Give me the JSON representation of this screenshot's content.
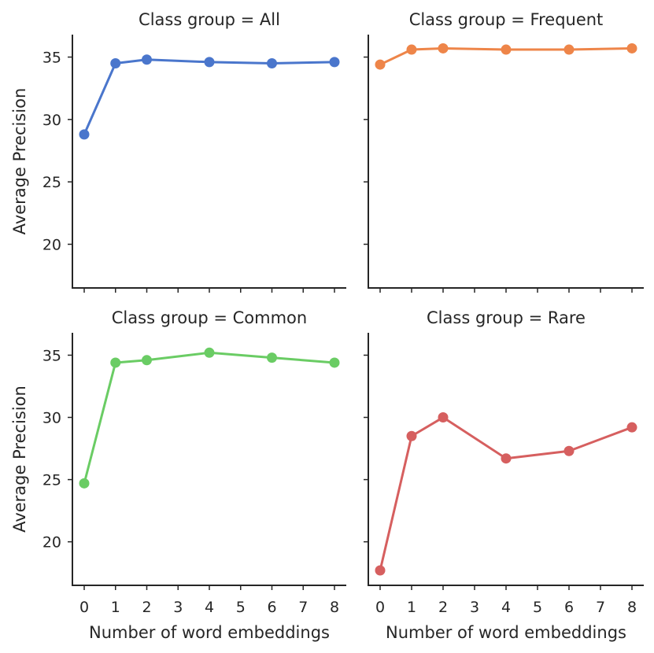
{
  "chart_data": {
    "type": "line",
    "facet_layout": "2x2",
    "shared_y": true,
    "ylim": [
      16.5,
      36.8
    ],
    "yticks": [
      20,
      25,
      30,
      35
    ],
    "ylabel": "Average Precision",
    "xlabel": "Number of word embeddings",
    "x_categories": [
      "0",
      "1",
      "2",
      "3",
      "4",
      "5",
      "6",
      "7",
      "8"
    ],
    "grid": false,
    "panels": [
      {
        "title": "Class group = All",
        "color": "#4a76cc",
        "x": [
          0,
          1,
          2,
          4,
          6,
          8
        ],
        "y": [
          28.8,
          34.5,
          34.8,
          34.6,
          34.5,
          34.6
        ]
      },
      {
        "title": "Class group = Frequent",
        "color": "#ee8549",
        "x": [
          0,
          1,
          2,
          4,
          6,
          8
        ],
        "y": [
          34.4,
          35.6,
          35.7,
          35.6,
          35.6,
          35.7
        ]
      },
      {
        "title": "Class group = Common",
        "color": "#6acc64",
        "x": [
          0,
          1,
          2,
          4,
          6,
          8
        ],
        "y": [
          24.7,
          34.4,
          34.6,
          35.2,
          34.8,
          34.4
        ]
      },
      {
        "title": "Class group = Rare",
        "color": "#d65f5f",
        "x": [
          0,
          1,
          2,
          4,
          6,
          8
        ],
        "y": [
          17.7,
          28.5,
          30.0,
          26.7,
          27.3,
          29.2
        ]
      }
    ]
  }
}
